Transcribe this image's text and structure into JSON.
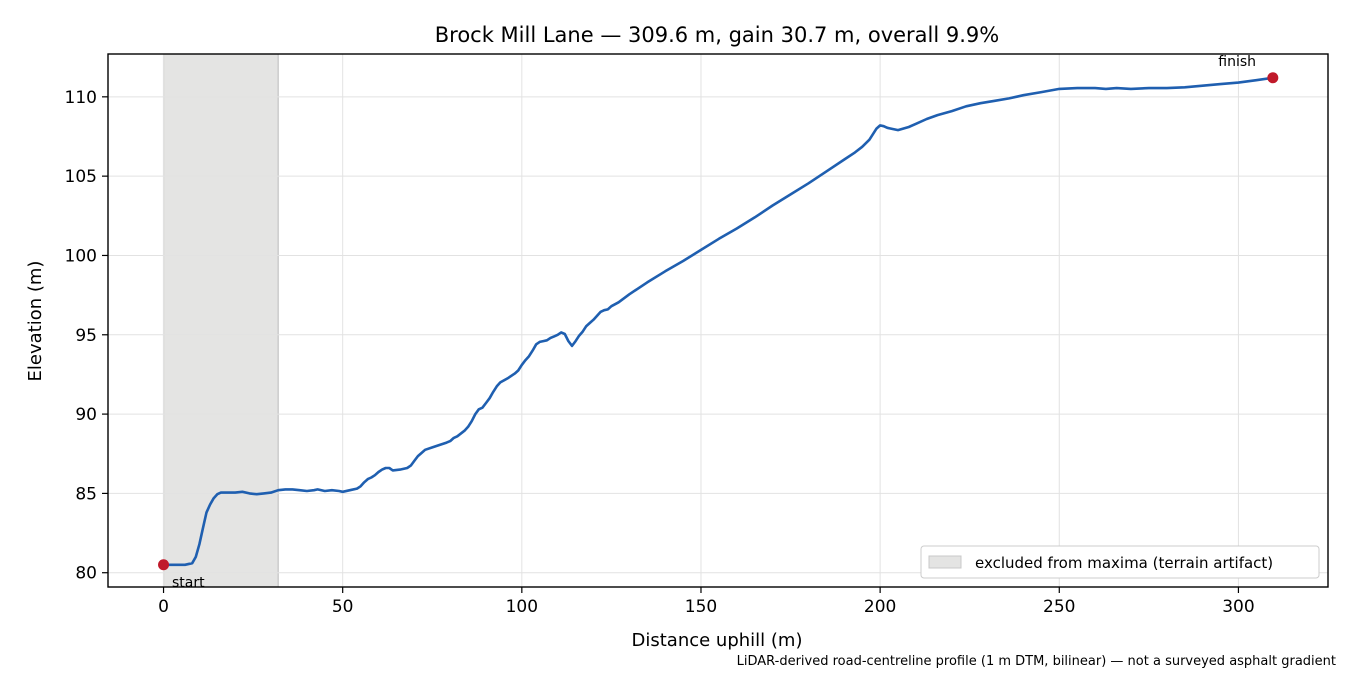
{
  "chart_data": {
    "type": "line",
    "title": "Brock Mill Lane — 309.6 m, gain 30.7 m, overall 9.9%",
    "xlabel": "Distance uphill (m)",
    "ylabel": "Elevation (m)",
    "xlim": [
      -15.5,
      325
    ],
    "ylim": [
      79.1,
      112.7
    ],
    "xticks": [
      0,
      50,
      100,
      150,
      200,
      250,
      300
    ],
    "yticks": [
      80,
      85,
      90,
      95,
      100,
      105,
      110
    ],
    "grid": true,
    "line_color": "#1f5fb0",
    "marker_color": "#c0192a",
    "shade_color": "#e4e4e3",
    "excluded_range": [
      0,
      32
    ],
    "legend": {
      "placement": "lower-right",
      "label": "excluded from maxima (terrain artifact)"
    },
    "annotations": {
      "start": {
        "label": "start",
        "x": 0,
        "y": 80.5
      },
      "finish": {
        "label": "finish",
        "x": 309.6,
        "y": 111.2
      }
    },
    "footnote": "LiDAR-derived road-centreline profile (1 m DTM, bilinear) — not a surveyed asphalt gradient",
    "series": [
      {
        "points": [
          [
            0,
            80.5
          ],
          [
            3,
            80.5
          ],
          [
            6,
            80.5
          ],
          [
            8,
            80.6
          ],
          [
            9,
            81.0
          ],
          [
            10,
            81.8
          ],
          [
            11,
            82.8
          ],
          [
            12,
            83.8
          ],
          [
            13,
            84.3
          ],
          [
            14,
            84.7
          ],
          [
            15,
            84.95
          ],
          [
            16,
            85.05
          ],
          [
            18,
            85.05
          ],
          [
            20,
            85.05
          ],
          [
            22,
            85.1
          ],
          [
            24,
            85.0
          ],
          [
            26,
            84.95
          ],
          [
            28,
            85.0
          ],
          [
            30,
            85.05
          ],
          [
            32,
            85.2
          ],
          [
            34,
            85.25
          ],
          [
            36,
            85.25
          ],
          [
            38,
            85.2
          ],
          [
            40,
            85.15
          ],
          [
            42,
            85.2
          ],
          [
            43,
            85.25
          ],
          [
            45,
            85.15
          ],
          [
            47,
            85.2
          ],
          [
            49,
            85.15
          ],
          [
            50,
            85.1
          ],
          [
            52,
            85.2
          ],
          [
            54,
            85.3
          ],
          [
            55,
            85.45
          ],
          [
            56,
            85.7
          ],
          [
            57,
            85.9
          ],
          [
            58,
            86.0
          ],
          [
            59,
            86.15
          ],
          [
            60,
            86.35
          ],
          [
            61,
            86.5
          ],
          [
            62,
            86.6
          ],
          [
            63,
            86.6
          ],
          [
            64,
            86.45
          ],
          [
            66,
            86.5
          ],
          [
            68,
            86.6
          ],
          [
            69,
            86.75
          ],
          [
            70,
            87.05
          ],
          [
            71,
            87.35
          ],
          [
            72,
            87.55
          ],
          [
            73,
            87.75
          ],
          [
            75,
            87.9
          ],
          [
            77,
            88.05
          ],
          [
            79,
            88.2
          ],
          [
            80,
            88.3
          ],
          [
            81,
            88.5
          ],
          [
            82,
            88.6
          ],
          [
            84,
            88.95
          ],
          [
            85,
            89.2
          ],
          [
            86,
            89.55
          ],
          [
            87,
            90.0
          ],
          [
            88,
            90.3
          ],
          [
            89,
            90.4
          ],
          [
            90,
            90.7
          ],
          [
            91,
            91.0
          ],
          [
            92,
            91.4
          ],
          [
            93,
            91.75
          ],
          [
            94,
            92.0
          ],
          [
            96,
            92.25
          ],
          [
            98,
            92.55
          ],
          [
            99,
            92.75
          ],
          [
            100,
            93.1
          ],
          [
            101,
            93.4
          ],
          [
            102,
            93.65
          ],
          [
            103,
            94.0
          ],
          [
            104,
            94.4
          ],
          [
            105,
            94.55
          ],
          [
            106,
            94.6
          ],
          [
            107,
            94.65
          ],
          [
            108,
            94.8
          ],
          [
            109,
            94.9
          ],
          [
            110,
            95.0
          ],
          [
            111,
            95.15
          ],
          [
            112,
            95.05
          ],
          [
            113,
            94.6
          ],
          [
            114,
            94.3
          ],
          [
            115,
            94.6
          ],
          [
            116,
            94.95
          ],
          [
            117,
            95.2
          ],
          [
            118,
            95.55
          ],
          [
            119,
            95.75
          ],
          [
            120,
            95.95
          ],
          [
            121,
            96.2
          ],
          [
            122,
            96.45
          ],
          [
            123,
            96.55
          ],
          [
            124,
            96.6
          ],
          [
            125,
            96.8
          ],
          [
            127,
            97.05
          ],
          [
            130,
            97.55
          ],
          [
            135,
            98.3
          ],
          [
            140,
            99.0
          ],
          [
            145,
            99.65
          ],
          [
            150,
            100.35
          ],
          [
            155,
            101.05
          ],
          [
            160,
            101.7
          ],
          [
            165,
            102.4
          ],
          [
            170,
            103.15
          ],
          [
            175,
            103.85
          ],
          [
            180,
            104.55
          ],
          [
            185,
            105.3
          ],
          [
            190,
            106.05
          ],
          [
            193,
            106.5
          ],
          [
            195,
            106.85
          ],
          [
            197,
            107.3
          ],
          [
            198,
            107.65
          ],
          [
            199,
            108.0
          ],
          [
            200,
            108.2
          ],
          [
            201,
            108.15
          ],
          [
            202,
            108.05
          ],
          [
            203,
            108.0
          ],
          [
            205,
            107.9
          ],
          [
            208,
            108.1
          ],
          [
            210,
            108.3
          ],
          [
            213,
            108.6
          ],
          [
            216,
            108.85
          ],
          [
            220,
            109.1
          ],
          [
            224,
            109.4
          ],
          [
            228,
            109.6
          ],
          [
            232,
            109.75
          ],
          [
            236,
            109.9
          ],
          [
            240,
            110.1
          ],
          [
            245,
            110.3
          ],
          [
            250,
            110.5
          ],
          [
            255,
            110.55
          ],
          [
            260,
            110.55
          ],
          [
            263,
            110.5
          ],
          [
            266,
            110.55
          ],
          [
            270,
            110.5
          ],
          [
            275,
            110.55
          ],
          [
            280,
            110.55
          ],
          [
            285,
            110.6
          ],
          [
            290,
            110.7
          ],
          [
            295,
            110.8
          ],
          [
            300,
            110.9
          ],
          [
            305,
            111.05
          ],
          [
            309.6,
            111.2
          ]
        ]
      }
    ]
  }
}
